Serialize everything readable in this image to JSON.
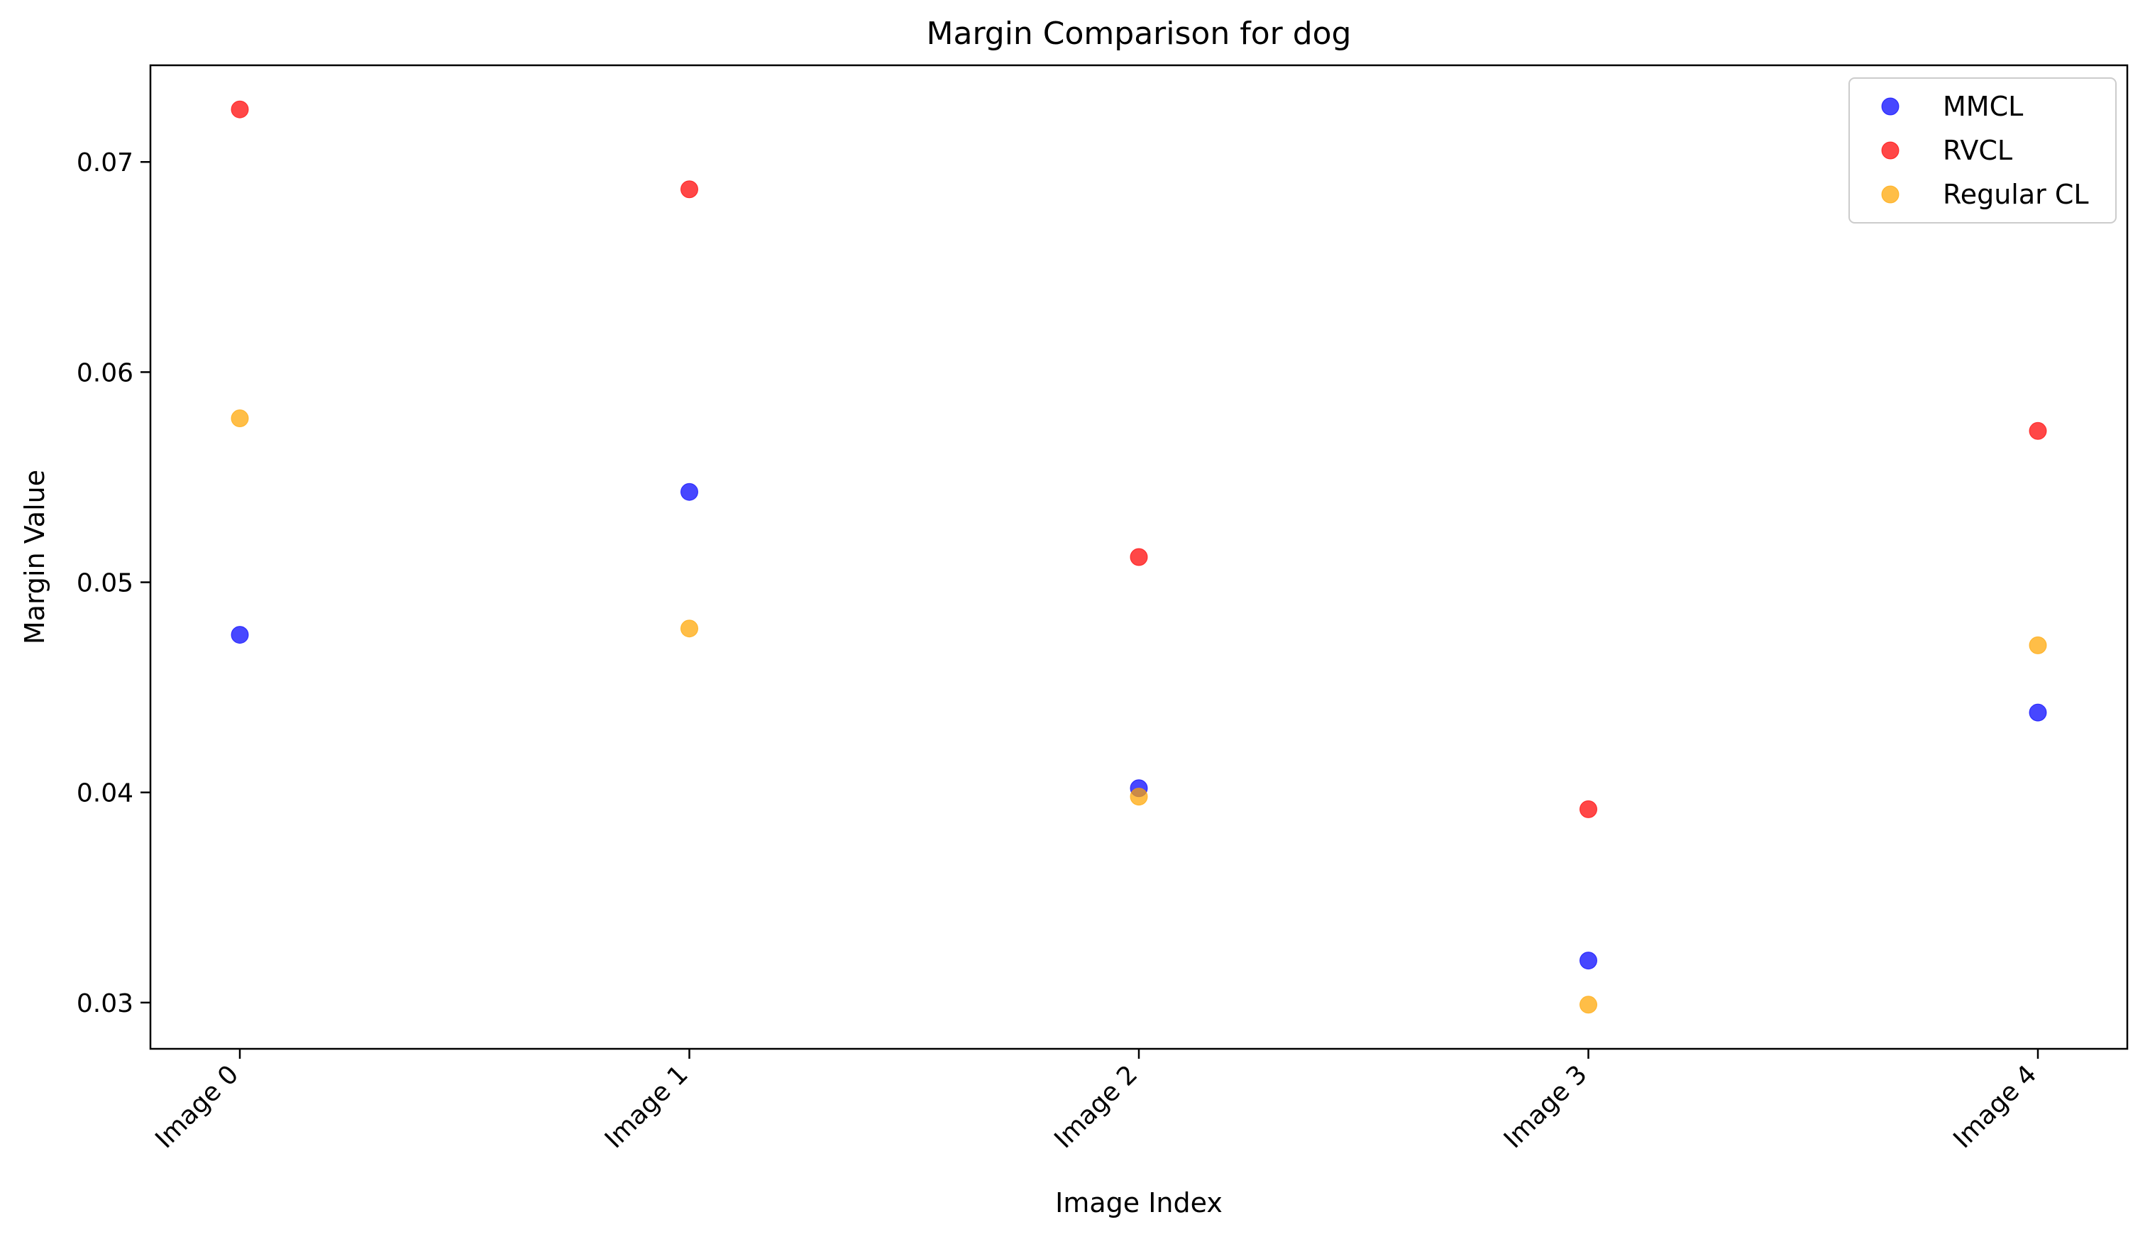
{
  "chart_data": {
    "type": "scatter",
    "title": "Margin Comparison for dog",
    "xlabel": "Image Index",
    "ylabel": "Margin Value",
    "categories": [
      "Image 0",
      "Image 1",
      "Image 2",
      "Image 3",
      "Image 4"
    ],
    "yticks": [
      0.03,
      0.04,
      0.05,
      0.06,
      0.07
    ],
    "ytick_labels": [
      "0.03",
      "0.04",
      "0.05",
      "0.06",
      "0.07"
    ],
    "ylim": [
      0.0278,
      0.0746
    ],
    "grid": false,
    "legend_position": "top-right",
    "series": [
      {
        "name": "MMCL",
        "color": "#0000ff",
        "values": [
          0.0475,
          0.0543,
          0.0402,
          0.032,
          0.0438
        ]
      },
      {
        "name": "RVCL",
        "color": "#ff0000",
        "values": [
          0.0725,
          0.0687,
          0.0512,
          0.0392,
          0.0572
        ]
      },
      {
        "name": "Regular CL",
        "color": "#ffa500",
        "values": [
          0.0578,
          0.0478,
          0.0398,
          0.0299,
          0.047
        ]
      }
    ]
  }
}
